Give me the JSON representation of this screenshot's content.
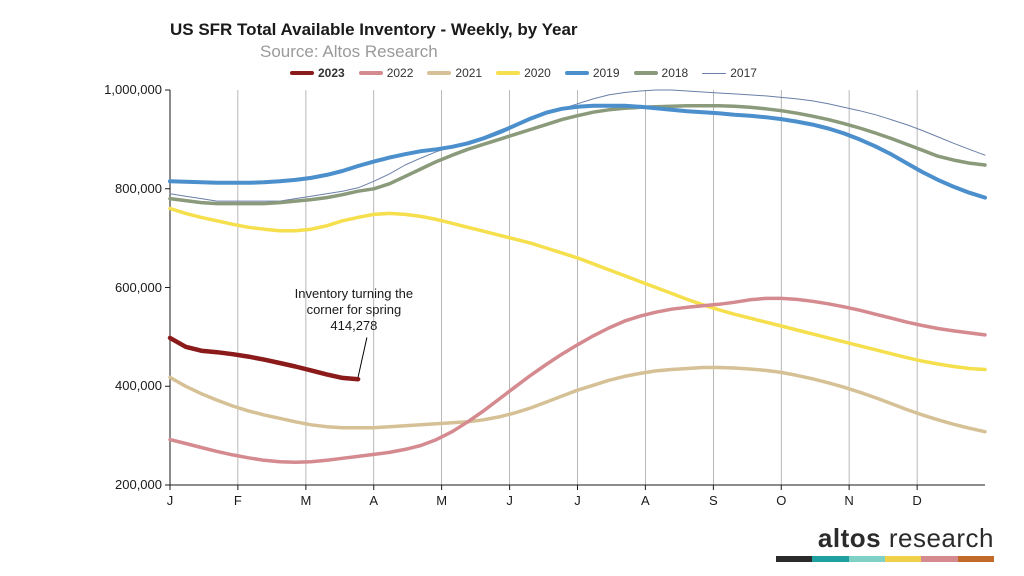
{
  "title": "US SFR Total Available Inventory - Weekly, by Year",
  "subtitle": "Source: Altos Research",
  "chart": {
    "type": "line",
    "background_color": "#ffffff",
    "grid_color": "#9a9a9a",
    "y_axis": {
      "min": 200000,
      "max": 1000000,
      "tick_step": 200000,
      "tick_labels": [
        "200,000",
        "400,000",
        "600,000",
        "800,000",
        "1,000,000"
      ]
    },
    "x_axis": {
      "min": 0,
      "max": 52,
      "tick_positions": [
        0,
        4.33,
        8.67,
        13,
        17.33,
        21.67,
        26,
        30.33,
        34.67,
        39,
        43.33,
        47.67
      ],
      "tick_labels": [
        "J",
        "F",
        "M",
        "A",
        "M",
        "J",
        "J",
        "A",
        "S",
        "O",
        "N",
        "D"
      ]
    },
    "legend": [
      {
        "label": "2023",
        "color": "#8b1a1a",
        "line_width": 4,
        "swatch_w": 24,
        "swatch_h": 4,
        "bold": true
      },
      {
        "label": "2022",
        "color": "#d48a8f",
        "line_width": 3.5,
        "swatch_w": 24,
        "swatch_h": 4,
        "bold": false
      },
      {
        "label": "2021",
        "color": "#d6c196",
        "line_width": 3.5,
        "swatch_w": 24,
        "swatch_h": 4,
        "bold": false
      },
      {
        "label": "2020",
        "color": "#f5df4d",
        "line_width": 3.5,
        "swatch_w": 24,
        "swatch_h": 4,
        "bold": false
      },
      {
        "label": "2019",
        "color": "#4b8fcc",
        "line_width": 4,
        "swatch_w": 24,
        "swatch_h": 4,
        "bold": false
      },
      {
        "label": "2018",
        "color": "#8a9a7b",
        "line_width": 3.5,
        "swatch_w": 24,
        "swatch_h": 4,
        "bold": false
      },
      {
        "label": "2017",
        "color": "#6a7fa8",
        "line_width": 1,
        "swatch_w": 24,
        "swatch_h": 1,
        "bold": false
      }
    ],
    "series": {
      "2017": {
        "color": "#6a7fa8",
        "width": 1,
        "y": [
          790000,
          785000,
          780000,
          775000,
          775000,
          775000,
          775000,
          775000,
          780000,
          785000,
          790000,
          795000,
          802000,
          815000,
          830000,
          848000,
          862000,
          875000,
          885000,
          895000,
          905000,
          918000,
          930000,
          942000,
          952000,
          962000,
          972000,
          982000,
          990000,
          995000,
          998000,
          1000000,
          1000000,
          998000,
          996000,
          994000,
          992000,
          990000,
          988000,
          985000,
          982000,
          978000,
          972000,
          965000,
          958000,
          950000,
          940000,
          930000,
          918000,
          905000,
          892000,
          880000,
          868000
        ]
      },
      "2018": {
        "color": "#8a9a7b",
        "width": 3.5,
        "y": [
          780000,
          776000,
          772000,
          770000,
          770000,
          770000,
          770000,
          772000,
          775000,
          778000,
          782000,
          788000,
          795000,
          800000,
          810000,
          825000,
          840000,
          855000,
          868000,
          880000,
          890000,
          900000,
          910000,
          920000,
          930000,
          940000,
          948000,
          955000,
          960000,
          963000,
          965000,
          966000,
          967000,
          968000,
          968000,
          968000,
          967000,
          965000,
          962000,
          958000,
          953000,
          947000,
          940000,
          932000,
          923000,
          913000,
          902000,
          890000,
          878000,
          866000,
          858000,
          852000,
          848000
        ]
      },
      "2019": {
        "color": "#4b8fcc",
        "width": 4,
        "y": [
          815000,
          814000,
          813000,
          812000,
          812000,
          812000,
          813000,
          815000,
          818000,
          822000,
          828000,
          836000,
          846000,
          855000,
          863000,
          870000,
          876000,
          880000,
          885000,
          892000,
          902000,
          914000,
          928000,
          942000,
          954000,
          962000,
          966000,
          968000,
          968000,
          968000,
          966000,
          963000,
          960000,
          957000,
          955000,
          953000,
          950000,
          948000,
          945000,
          941000,
          936000,
          930000,
          922000,
          912000,
          900000,
          886000,
          870000,
          852000,
          834000,
          818000,
          804000,
          792000,
          782000
        ]
      },
      "2020": {
        "color": "#f5df4d",
        "width": 3.5,
        "y": [
          760000,
          750000,
          742000,
          735000,
          728000,
          722000,
          718000,
          715000,
          715000,
          718000,
          725000,
          735000,
          742000,
          748000,
          750000,
          748000,
          744000,
          738000,
          730000,
          722000,
          714000,
          706000,
          698000,
          690000,
          680000,
          670000,
          660000,
          648000,
          636000,
          624000,
          612000,
          600000,
          588000,
          576000,
          565000,
          555000,
          546000,
          538000,
          530000,
          522000,
          514000,
          506000,
          498000,
          490000,
          482000,
          474000,
          466000,
          458000,
          451000,
          445000,
          440000,
          436000,
          434000
        ]
      },
      "2021": {
        "color": "#d6c196",
        "width": 3.5,
        "y": [
          418000,
          400000,
          385000,
          372000,
          360000,
          350000,
          342000,
          335000,
          328000,
          322000,
          318000,
          316000,
          316000,
          316000,
          318000,
          320000,
          322000,
          324000,
          326000,
          328000,
          332000,
          338000,
          346000,
          356000,
          368000,
          380000,
          392000,
          402000,
          412000,
          420000,
          426000,
          431000,
          434000,
          436000,
          438000,
          438000,
          437000,
          435000,
          432000,
          428000,
          422000,
          415000,
          407000,
          398000,
          388000,
          377000,
          365000,
          353000,
          342000,
          332000,
          323000,
          315000,
          308000
        ]
      },
      "2022": {
        "color": "#d48a8f",
        "width": 3.5,
        "y": [
          292000,
          284000,
          276000,
          268000,
          261000,
          255000,
          250000,
          247000,
          246000,
          247000,
          250000,
          254000,
          258000,
          262000,
          266000,
          272000,
          280000,
          292000,
          308000,
          328000,
          350000,
          374000,
          398000,
          422000,
          444000,
          465000,
          484000,
          502000,
          518000,
          532000,
          542000,
          550000,
          556000,
          560000,
          563000,
          566000,
          570000,
          575000,
          578000,
          578000,
          576000,
          572000,
          567000,
          561000,
          554000,
          546000,
          538000,
          530000,
          523000,
          517000,
          512000,
          508000,
          504000
        ]
      },
      "2023": {
        "color": "#8b1a1a",
        "width": 4.5,
        "y": [
          498000,
          480000,
          472000,
          469000,
          465000,
          460000,
          454000,
          447000,
          440000,
          432000,
          424000,
          417000,
          414278
        ]
      }
    },
    "annotation": {
      "text_line1": "Inventory turning the",
      "text_line2": "corner for spring",
      "text_line3": "414,278",
      "target_week": 12,
      "target_value": 414278,
      "label_x_week": 9.5,
      "label_y_value": 600000,
      "line_color": "#000000"
    }
  },
  "brand": {
    "word1": "altos",
    "word2": "research",
    "bar_colors": [
      "#2b2b2b",
      "#1fa0a0",
      "#7fd1c6",
      "#f2d14a",
      "#d48a8f",
      "#c26a2a"
    ]
  }
}
